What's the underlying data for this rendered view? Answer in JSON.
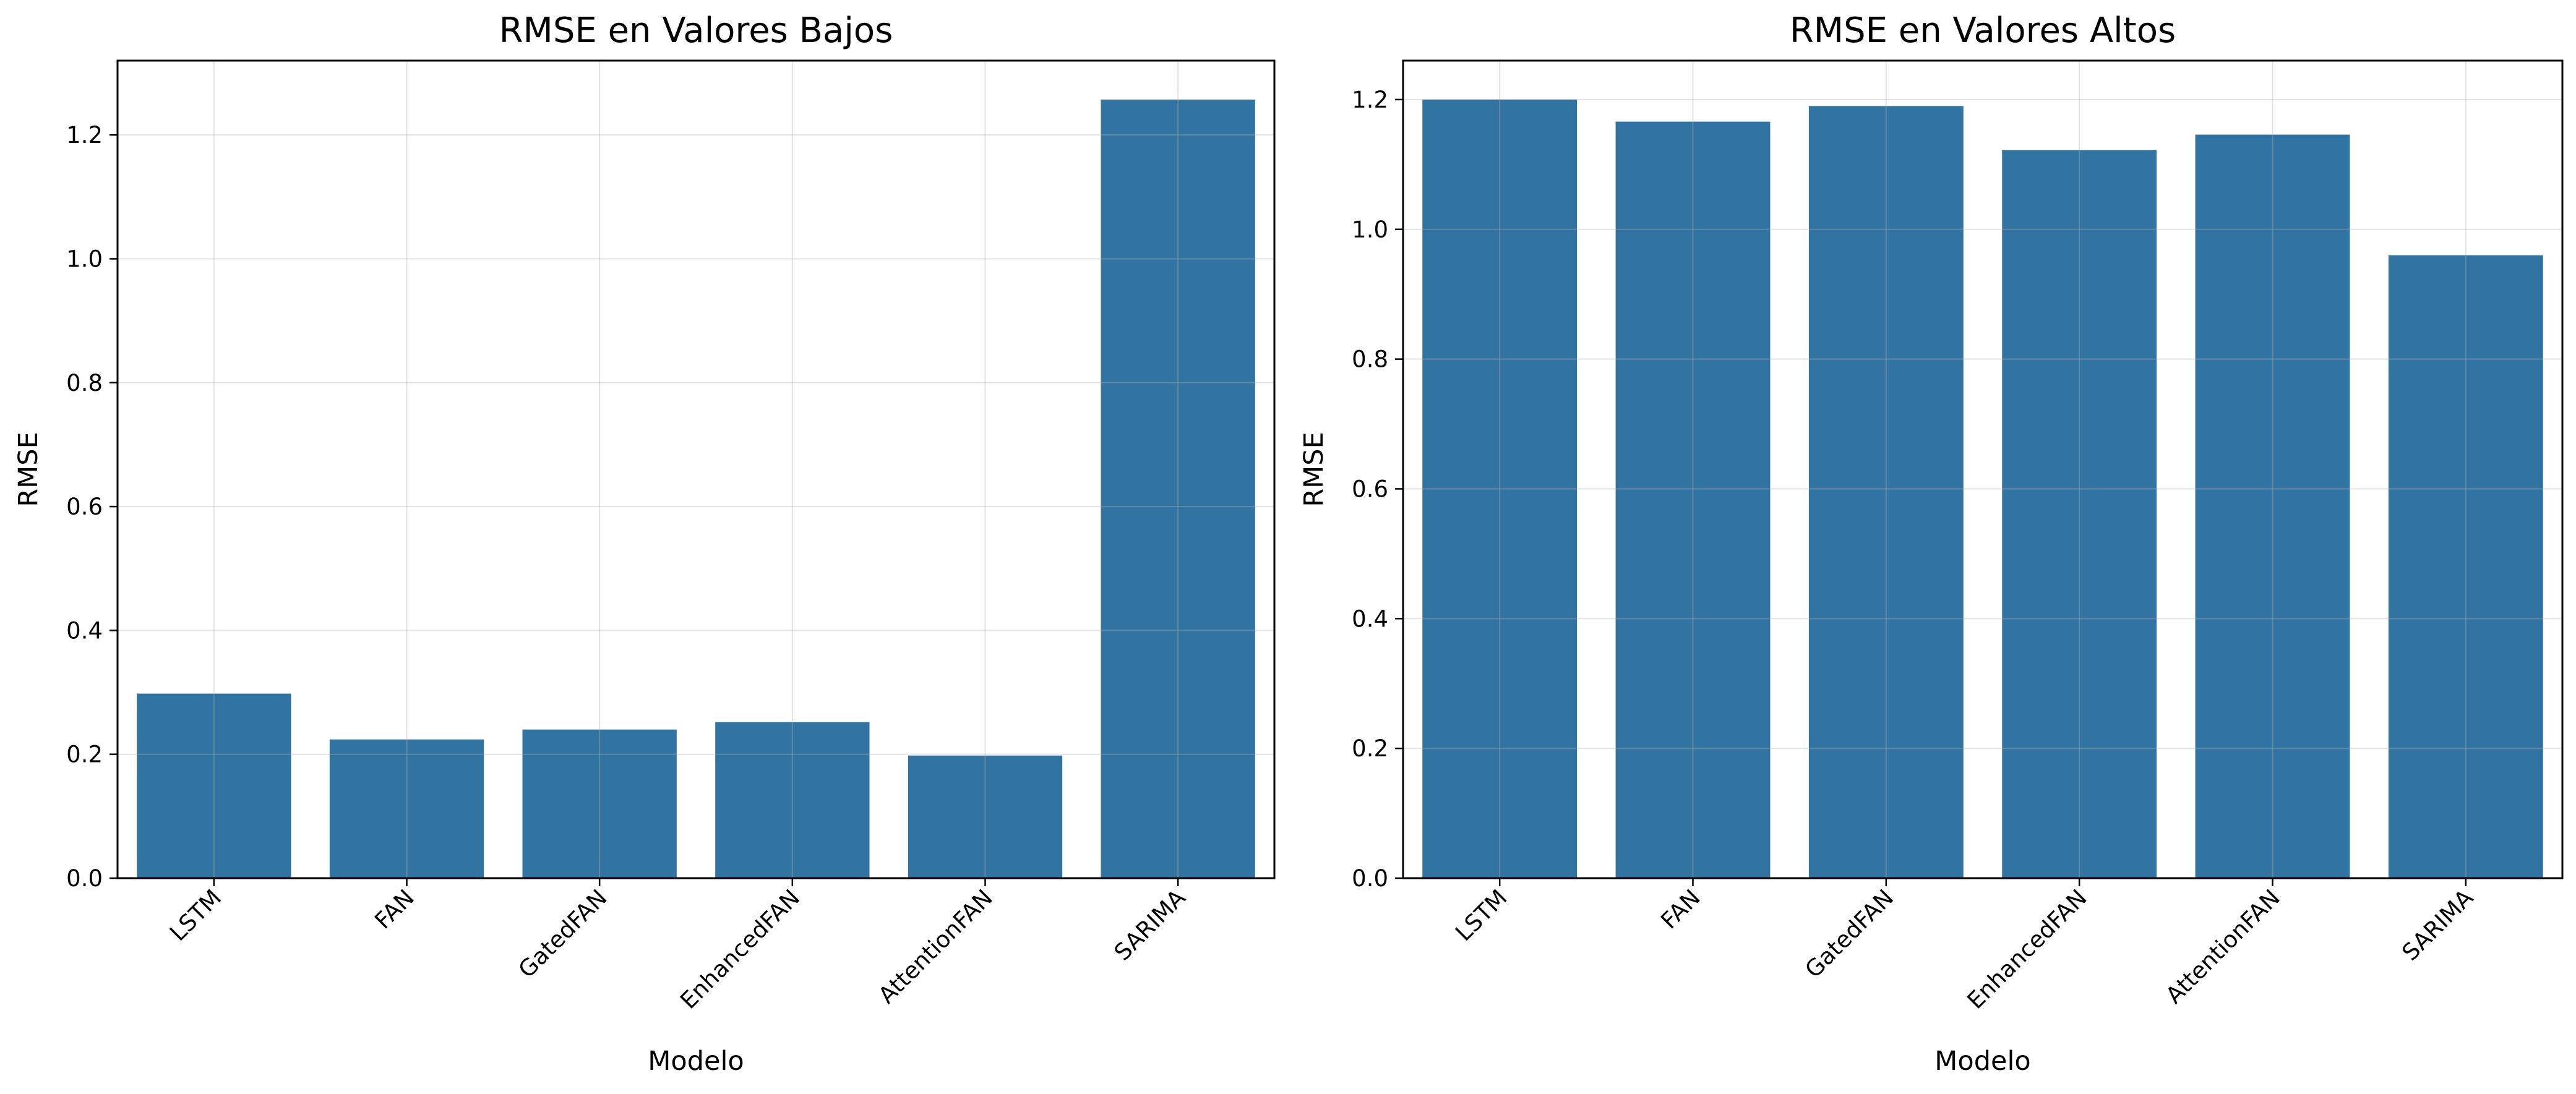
{
  "chart_data": [
    {
      "type": "bar",
      "title": "RMSE en Valores Bajos",
      "xlabel": "Modelo",
      "ylabel": "RMSE",
      "categories": [
        "LSTM",
        "FAN",
        "GatedFAN",
        "EnhancedFAN",
        "AttentionFAN",
        "SARIMA"
      ],
      "values": [
        0.298,
        0.224,
        0.24,
        0.252,
        0.198,
        1.257
      ],
      "ylim": [
        0,
        1.32
      ],
      "yticks": [
        "0.0",
        "0.2",
        "0.4",
        "0.6",
        "0.8",
        "1.0",
        "1.2"
      ],
      "grid": true,
      "bar_color": "#3274a1"
    },
    {
      "type": "bar",
      "title": "RMSE en Valores Altos",
      "xlabel": "Modelo",
      "ylabel": "RMSE",
      "categories": [
        "LSTM",
        "FAN",
        "GatedFAN",
        "EnhancedFAN",
        "AttentionFAN",
        "SARIMA"
      ],
      "values": [
        1.2,
        1.166,
        1.19,
        1.122,
        1.146,
        0.96
      ],
      "ylim": [
        0,
        1.26
      ],
      "yticks": [
        "0.0",
        "0.2",
        "0.4",
        "0.6",
        "0.8",
        "1.0",
        "1.2"
      ],
      "grid": true,
      "bar_color": "#3274a1"
    }
  ]
}
